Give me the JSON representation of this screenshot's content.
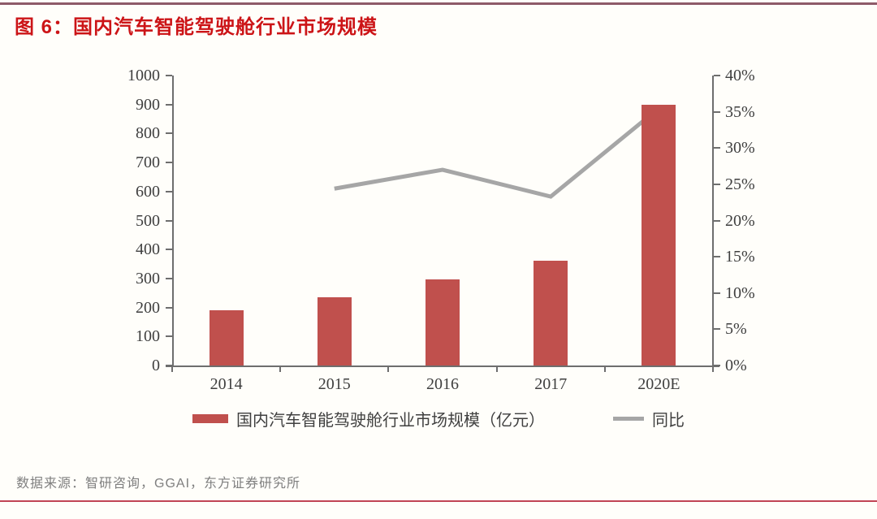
{
  "page": {
    "title": "图 6：国内汽车智能驾驶舱行业市场规模",
    "source": "数据来源：智研咨询，GGAI，东方证券研究所"
  },
  "colors": {
    "title_red": "#cc1417",
    "bar_red": "#c0504d",
    "line_gray": "#a6a6a6",
    "axis_gray": "#6e6e6e",
    "label_dark": "#3f3f3f",
    "source_gray": "#7f7f7f",
    "top_rule": "#8e5a68",
    "bottom_rule": "#c14455",
    "background": "#fffefa"
  },
  "chart_data": {
    "type": "bar",
    "subtype": "bar+line-combo-dual-axis",
    "title": "国内汽车智能驾驶舱行业市场规模",
    "categories": [
      "2014",
      "2015",
      "2016",
      "2017",
      "2020E"
    ],
    "series": [
      {
        "name": "国内汽车智能驾驶舱行业市场规模（亿元）",
        "type": "bar",
        "axis": "left",
        "color": "#c0504d",
        "values": [
          190,
          234,
          297,
          362,
          900
        ]
      },
      {
        "name": "同比",
        "type": "line",
        "axis": "right",
        "color": "#a6a6a6",
        "values": [
          null,
          24.4,
          27.0,
          23.3,
          35.5
        ]
      }
    ],
    "left_axis": {
      "min": 0,
      "max": 1000,
      "step": 100,
      "tick_labels": [
        "0",
        "100",
        "200",
        "300",
        "400",
        "500",
        "600",
        "700",
        "800",
        "900",
        "1000"
      ]
    },
    "right_axis": {
      "min": 0,
      "max": 40,
      "step": 5,
      "suffix": "%",
      "tick_labels": [
        "0%",
        "5%",
        "10%",
        "15%",
        "20%",
        "25%",
        "30%",
        "35%",
        "40%"
      ]
    },
    "grid": false,
    "legend_position": "bottom"
  }
}
